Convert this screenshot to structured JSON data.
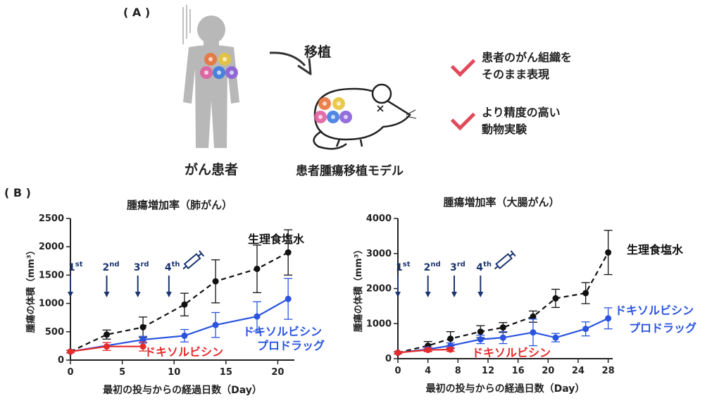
{
  "panel_a": {
    "label": "( A )",
    "patient_label": "がん患者",
    "transplant_label": "移植",
    "model_label": "患者腫瘍移植モデル",
    "features": [
      {
        "line1": "患者のがん組織を",
        "line2": "そのまま表現"
      },
      {
        "line1": "より精度の高い",
        "line2": "動物実験"
      }
    ],
    "check_color": "#e04a5a",
    "cell_colors": [
      "#e9743a",
      "#e7c43a",
      "#e05fa0",
      "#3e7be0",
      "#8a5fd8"
    ]
  },
  "panel_b": {
    "label": "( B )"
  },
  "dose_labels": [
    {
      "base": "1",
      "sup": "st"
    },
    {
      "base": "2",
      "sup": "nd"
    },
    {
      "base": "3",
      "sup": "rd"
    },
    {
      "base": "4",
      "sup": "th"
    }
  ],
  "colors": {
    "saline": "#111111",
    "dox": "#e52b2b",
    "prodrug": "#2a54e0",
    "dose": "#1b3470"
  },
  "chart_data": [
    {
      "type": "line",
      "title": "腫瘍増加率（肺がん）",
      "xlabel": "最初の投与からの経過日数（Day）",
      "ylabel": "腫瘍の体積（mm³）",
      "xlim": [
        0,
        21.6
      ],
      "ylim": [
        0,
        2500
      ],
      "xticks": [
        0,
        5,
        10,
        15,
        20
      ],
      "yticks": [
        0,
        500,
        1000,
        1500,
        2000,
        2500
      ],
      "dose_days": [
        0,
        3.5,
        6.5,
        9.5
      ],
      "series": [
        {
          "name": "生理食塩水",
          "style": "dashed",
          "x": [
            0,
            3.5,
            7,
            11,
            14,
            18,
            21
          ],
          "y": [
            150,
            450,
            580,
            980,
            1390,
            1610,
            1900
          ],
          "err": [
            20,
            80,
            180,
            200,
            380,
            420,
            400
          ]
        },
        {
          "name": "ドキソルビシン プロドラッグ",
          "style": "solid",
          "x": [
            0,
            7,
            11,
            14,
            18,
            21
          ],
          "y": [
            150,
            360,
            430,
            620,
            770,
            1080
          ],
          "err": [
            20,
            60,
            110,
            220,
            260,
            360
          ]
        },
        {
          "name": "ドキソルビシン",
          "style": "solid",
          "x": [
            0,
            3.5,
            7
          ],
          "y": [
            150,
            240,
            240
          ],
          "err": [
            20,
            70,
            80
          ]
        }
      ]
    },
    {
      "type": "line",
      "title": "腫瘍増加率（大腸がん）",
      "xlabel": "最初の投与からの経過日数（Day）",
      "ylabel": "腫瘍の体積（mm³）",
      "xlim": [
        0,
        28.6
      ],
      "ylim": [
        0,
        4000
      ],
      "xticks": [
        0,
        4,
        8,
        12,
        16,
        20,
        24,
        28
      ],
      "yticks": [
        0,
        1000,
        2000,
        3000,
        4000
      ],
      "dose_days": [
        0,
        4,
        7.5,
        11
      ],
      "series": [
        {
          "name": "生理食塩水",
          "style": "dashed",
          "x": [
            0,
            4,
            7,
            11,
            14,
            18,
            21,
            25,
            28
          ],
          "y": [
            170,
            370,
            570,
            770,
            890,
            1200,
            1720,
            1870,
            3030
          ],
          "err": [
            30,
            120,
            200,
            170,
            140,
            160,
            260,
            300,
            630
          ]
        },
        {
          "name": "ドキソルビシン プロドラッグ",
          "style": "solid",
          "x": [
            0,
            4,
            7,
            11,
            14,
            18,
            21,
            25,
            28
          ],
          "y": [
            170,
            270,
            370,
            550,
            600,
            750,
            600,
            850,
            1150
          ],
          "err": [
            30,
            60,
            80,
            120,
            170,
            380,
            120,
            200,
            300
          ]
        },
        {
          "name": "ドキソルビシン",
          "style": "solid",
          "x": [
            0,
            4,
            7
          ],
          "y": [
            170,
            250,
            260
          ],
          "err": [
            30,
            50,
            50
          ]
        }
      ]
    }
  ]
}
